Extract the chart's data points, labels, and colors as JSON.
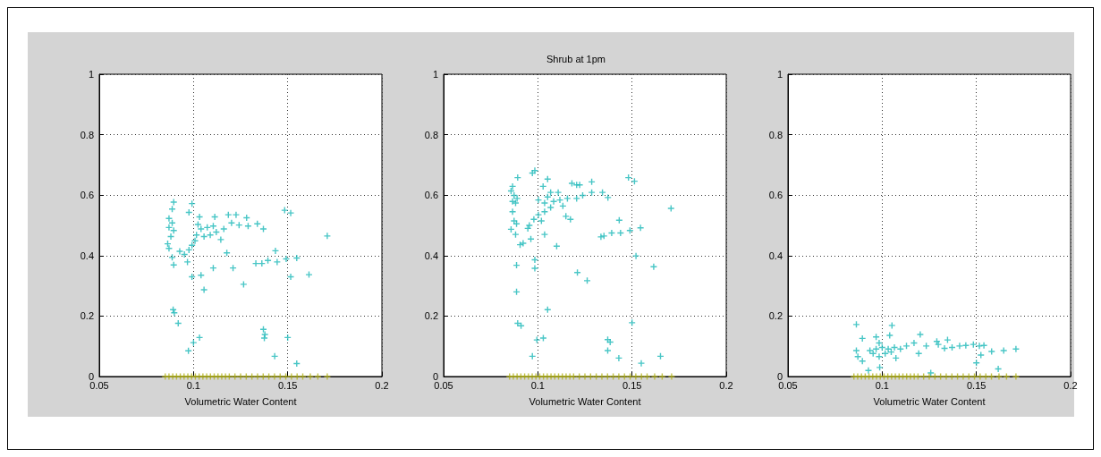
{
  "chart_data": [
    {
      "type": "scatter",
      "xlabel": "Volumetric Water Content",
      "xlim": [
        0.05,
        0.2
      ],
      "xticks": [
        0.05,
        0.1,
        0.15,
        0.2
      ],
      "ylim": [
        0,
        1
      ],
      "yticks": [
        0,
        0.2,
        0.4,
        0.6,
        0.8,
        1
      ],
      "grid": true,
      "marker": "cross",
      "series": [
        {
          "color": "#1cb8b8",
          "x": [
            0.0895,
            0.0887,
            0.087,
            0.0887,
            0.087,
            0.0895,
            0.088,
            0.0863,
            0.087,
            0.0927,
            0.0887,
            0.0895,
            0.0992,
            0.0976,
            0.1032,
            0.1113,
            0.1185,
            0.1226,
            0.1282,
            0.1202,
            0.1242,
            0.129,
            0.1339,
            0.1371,
            0.1161,
            0.1024,
            0.104,
            0.1073,
            0.1105,
            0.1121,
            0.1089,
            0.1056,
            0.1016,
            0.1008,
            0.0992,
            0.0976,
            0.0952,
            0.0968,
            0.1145,
            0.1177,
            0.1105,
            0.121,
            0.0992,
            0.104,
            0.1056,
            0.1266,
            0.1435,
            0.1331,
            0.1363,
            0.1395,
            0.1444,
            0.1492,
            0.1548,
            0.1516,
            0.1613,
            0.1484,
            0.1516,
            0.171,
            0.0892,
            0.0898,
            0.0919,
            0.1032,
            0.1,
            0.0973,
            0.1371,
            0.1379,
            0.1376,
            0.15,
            0.1431,
            0.1548
          ],
          "values": [
            0.577,
            0.554,
            0.523,
            0.508,
            0.493,
            0.483,
            0.463,
            0.439,
            0.424,
            0.414,
            0.394,
            0.369,
            0.572,
            0.543,
            0.528,
            0.528,
            0.535,
            0.535,
            0.525,
            0.508,
            0.501,
            0.498,
            0.505,
            0.488,
            0.488,
            0.503,
            0.488,
            0.493,
            0.498,
            0.478,
            0.468,
            0.463,
            0.468,
            0.449,
            0.434,
            0.419,
            0.404,
            0.379,
            0.453,
            0.409,
            0.359,
            0.359,
            0.33,
            0.335,
            0.287,
            0.305,
            0.416,
            0.374,
            0.374,
            0.384,
            0.379,
            0.389,
            0.392,
            0.33,
            0.337,
            0.55,
            0.541,
            0.465,
            0.221,
            0.211,
            0.176,
            0.129,
            0.112,
            0.085,
            0.156,
            0.139,
            0.127,
            0.129,
            0.067,
            0.043
          ]
        },
        {
          "color": "#b4b41c",
          "x": [
            0.085,
            0.087,
            0.089,
            0.091,
            0.093,
            0.095,
            0.097,
            0.099,
            0.101,
            0.103,
            0.105,
            0.107,
            0.109,
            0.111,
            0.113,
            0.115,
            0.117,
            0.119,
            0.122,
            0.125,
            0.128,
            0.131,
            0.134,
            0.137,
            0.14,
            0.143,
            0.146,
            0.149,
            0.152,
            0.155,
            0.158,
            0.162,
            0.166,
            0.171
          ],
          "values": [
            0,
            0,
            0,
            0,
            0,
            0,
            0,
            0,
            0,
            0,
            0,
            0,
            0,
            0,
            0,
            0,
            0,
            0,
            0,
            0,
            0,
            0,
            0,
            0,
            0,
            0,
            0,
            0,
            0,
            0,
            0,
            0,
            0,
            0
          ]
        }
      ]
    },
    {
      "type": "scatter",
      "title": "Shrub at 1pm",
      "xlabel": "Volumetric Water Content",
      "xlim": [
        0.05,
        0.2
      ],
      "xticks": [
        0.05,
        0.1,
        0.15,
        0.2
      ],
      "ylim": [
        0,
        1
      ],
      "yticks": [
        0,
        0.2,
        0.4,
        0.6,
        0.8,
        1
      ],
      "grid": true,
      "marker": "cross",
      "series": [
        {
          "color": "#1cb8b8",
          "x": [
            0.0893,
            0.0866,
            0.0858,
            0.0874,
            0.089,
            0.0866,
            0.0882,
            0.0866,
            0.0874,
            0.0887,
            0.0858,
            0.0882,
            0.0906,
            0.0922,
            0.0963,
            0.1036,
            0.11,
            0.0971,
            0.0984,
            0.1028,
            0.1052,
            0.1003,
            0.1036,
            0.1052,
            0.1084,
            0.1117,
            0.1068,
            0.1036,
            0.1003,
            0.0979,
            0.0955,
            0.0947,
            0.1019,
            0.1108,
            0.1133,
            0.1068,
            0.1157,
            0.1181,
            0.1206,
            0.1222,
            0.1238,
            0.1206,
            0.1286,
            0.1286,
            0.1343,
            0.1372,
            0.1149,
            0.1173,
            0.1481,
            0.1513,
            0.1707,
            0.1432,
            0.1545,
            0.1489,
            0.1439,
            0.1392,
            0.1335,
            0.1351,
            0.1521,
            0.1615,
            0.121,
            0.1262,
            0.0984,
            0.0984,
            0.0887,
            0.0887,
            0.0893,
            0.0911,
            0.1052,
            0.0995,
            0.1029,
            0.0971,
            0.1371,
            0.1384,
            0.1371,
            0.143,
            0.15,
            0.1549,
            0.1651
          ],
          "values": [
            0.658,
            0.629,
            0.614,
            0.599,
            0.589,
            0.579,
            0.574,
            0.545,
            0.515,
            0.505,
            0.487,
            0.47,
            0.436,
            0.441,
            0.455,
            0.47,
            0.431,
            0.673,
            0.681,
            0.629,
            0.653,
            0.584,
            0.574,
            0.594,
            0.579,
            0.584,
            0.559,
            0.545,
            0.535,
            0.52,
            0.5,
            0.49,
            0.515,
            0.609,
            0.564,
            0.609,
            0.589,
            0.639,
            0.634,
            0.634,
            0.599,
            0.589,
            0.644,
            0.609,
            0.609,
            0.592,
            0.53,
            0.52,
            0.658,
            0.646,
            0.556,
            0.517,
            0.492,
            0.483,
            0.475,
            0.475,
            0.462,
            0.465,
            0.399,
            0.363,
            0.344,
            0.317,
            0.386,
            0.358,
            0.368,
            0.28,
            0.176,
            0.168,
            0.221,
            0.121,
            0.127,
            0.067,
            0.122,
            0.114,
            0.086,
            0.061,
            0.178,
            0.044,
            0.067
          ]
        },
        {
          "color": "#b4b41c",
          "x": [
            0.085,
            0.087,
            0.089,
            0.091,
            0.093,
            0.095,
            0.097,
            0.099,
            0.101,
            0.103,
            0.105,
            0.107,
            0.109,
            0.111,
            0.113,
            0.115,
            0.117,
            0.119,
            0.122,
            0.125,
            0.128,
            0.131,
            0.134,
            0.137,
            0.14,
            0.143,
            0.146,
            0.149,
            0.152,
            0.155,
            0.158,
            0.162,
            0.166,
            0.171
          ],
          "values": [
            0,
            0,
            0,
            0,
            0,
            0,
            0,
            0,
            0,
            0,
            0,
            0,
            0,
            0,
            0,
            0,
            0,
            0,
            0,
            0,
            0,
            0,
            0,
            0,
            0,
            0,
            0,
            0,
            0,
            0,
            0,
            0,
            0,
            0
          ]
        }
      ]
    },
    {
      "type": "scatter",
      "xlabel": "Volumetric Water Content",
      "xlim": [
        0.05,
        0.2
      ],
      "xticks": [
        0.05,
        0.1,
        0.15,
        0.2
      ],
      "ylim": [
        0,
        1
      ],
      "yticks": [
        0,
        0.2,
        0.4,
        0.6,
        0.8,
        1
      ],
      "grid": true,
      "marker": "cross",
      "series": [
        {
          "color": "#1cb8b8",
          "x": [
            0.0863,
            0.1052,
            0.0895,
            0.104,
            0.1202,
            0.0968,
            0.0984,
            0.1347,
            0.129,
            0.0863,
            0.0871,
            0.0895,
            0.0935,
            0.0968,
            0.1,
            0.1032,
            0.1065,
            0.1097,
            0.1129,
            0.1169,
            0.1016,
            0.1048,
            0.0984,
            0.0952,
            0.1073,
            0.1194,
            0.1234,
            0.1298,
            0.1331,
            0.1371,
            0.1411,
            0.1444,
            0.1484,
            0.1516,
            0.154,
            0.1581,
            0.1645,
            0.171,
            0.1524,
            0.15,
            0.0927,
            0.0987,
            0.1258,
            0.1616
          ],
          "values": [
            0.172,
            0.169,
            0.126,
            0.136,
            0.139,
            0.131,
            0.111,
            0.121,
            0.116,
            0.086,
            0.066,
            0.051,
            0.086,
            0.091,
            0.096,
            0.091,
            0.096,
            0.091,
            0.101,
            0.111,
            0.076,
            0.081,
            0.066,
            0.076,
            0.061,
            0.076,
            0.101,
            0.106,
            0.093,
            0.096,
            0.101,
            0.103,
            0.106,
            0.101,
            0.103,
            0.083,
            0.086,
            0.091,
            0.071,
            0.045,
            0.02,
            0.03,
            0.012,
            0.025
          ]
        },
        {
          "color": "#b4b41c",
          "x": [
            0.085,
            0.087,
            0.089,
            0.091,
            0.093,
            0.095,
            0.097,
            0.099,
            0.101,
            0.103,
            0.105,
            0.107,
            0.109,
            0.111,
            0.113,
            0.115,
            0.117,
            0.119,
            0.122,
            0.125,
            0.128,
            0.131,
            0.134,
            0.137,
            0.14,
            0.143,
            0.146,
            0.149,
            0.152,
            0.155,
            0.158,
            0.162,
            0.166,
            0.171
          ],
          "values": [
            0,
            0,
            0,
            0,
            0,
            0,
            0,
            0,
            0,
            0,
            0,
            0,
            0,
            0,
            0,
            0,
            0,
            0,
            0,
            0,
            0,
            0,
            0,
            0,
            0,
            0,
            0,
            0,
            0,
            0,
            0,
            0,
            0,
            0
          ]
        }
      ]
    }
  ]
}
